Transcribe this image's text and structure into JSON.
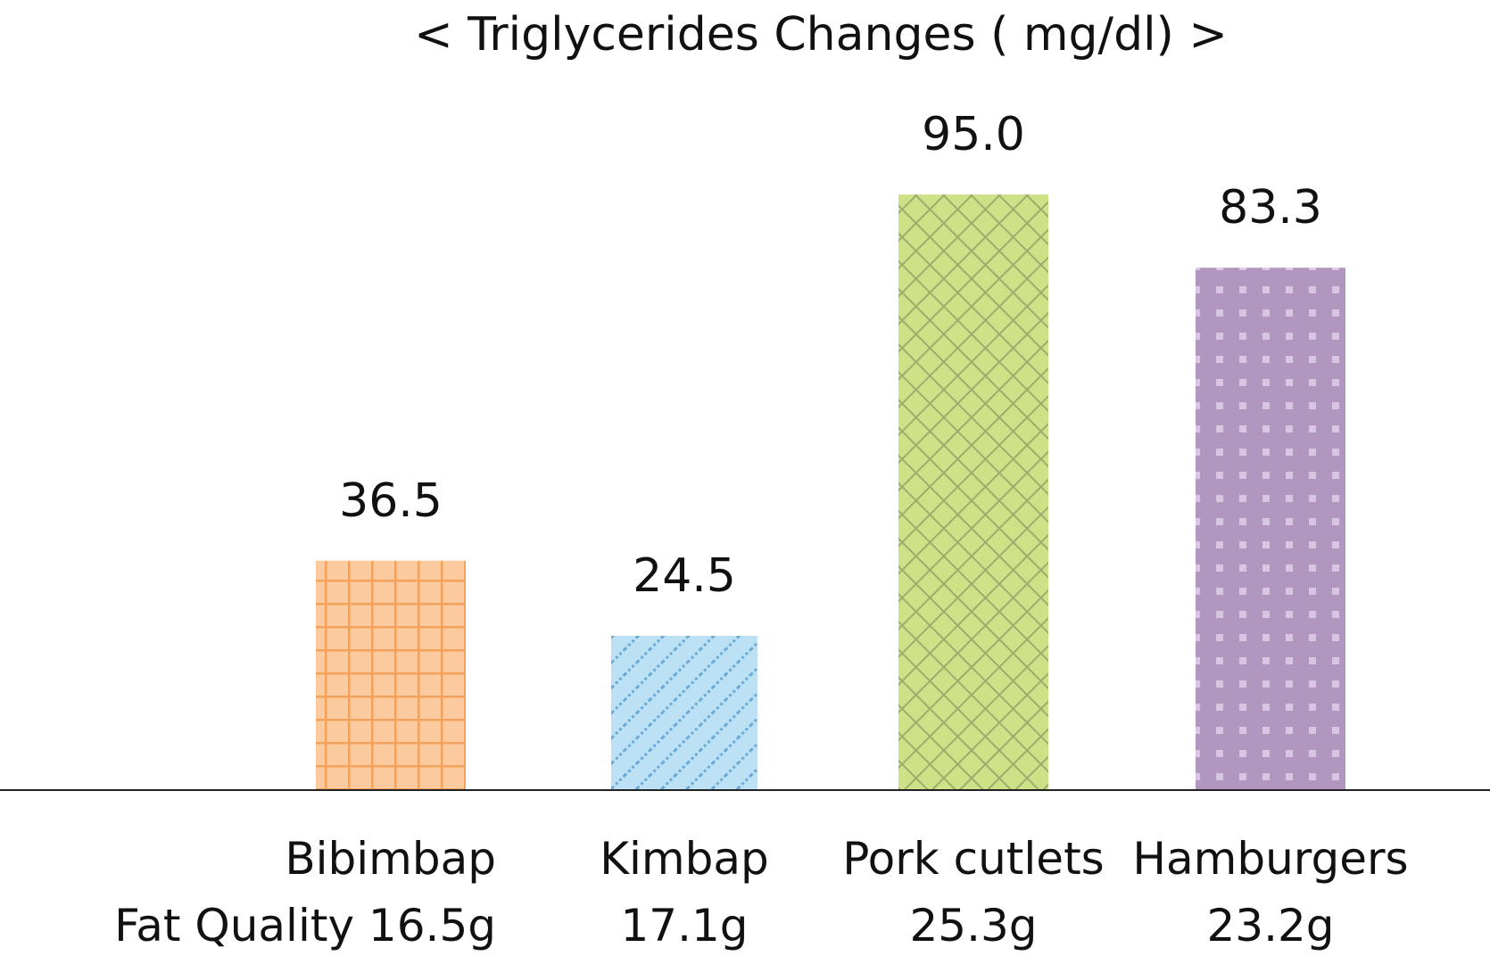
{
  "chart_data": {
    "type": "bar",
    "title": "< Triglycerides Changes ( mg/dl) >",
    "xlabel": "",
    "ylabel": "",
    "categories": [
      "Bibimbap",
      "Kimbap",
      "Pork cutlets",
      "Hamburgers"
    ],
    "values": [
      36.5,
      24.5,
      95.0,
      83.3
    ],
    "value_labels": [
      "36.5",
      "24.5",
      "95.0",
      "83.3"
    ],
    "fat_quality_prefix": "Fat Quality",
    "fat_quality": [
      "16.5g",
      "17.1g",
      "25.3g",
      "23.2g"
    ],
    "ylim": [
      0,
      110
    ],
    "grid": false,
    "legend": "none",
    "bar_styles": [
      {
        "pattern": "grid",
        "fill": "#FBCB9F",
        "line": "#F2A25A"
      },
      {
        "pattern": "diagonal-dotted",
        "fill": "#BCE1F5",
        "line": "#6AAAD6"
      },
      {
        "pattern": "crosshatch",
        "fill": "#CFE187",
        "line": "#9CAE6C"
      },
      {
        "pattern": "dots",
        "fill": "#B196C0",
        "line": "#D9C6E3"
      }
    ]
  }
}
